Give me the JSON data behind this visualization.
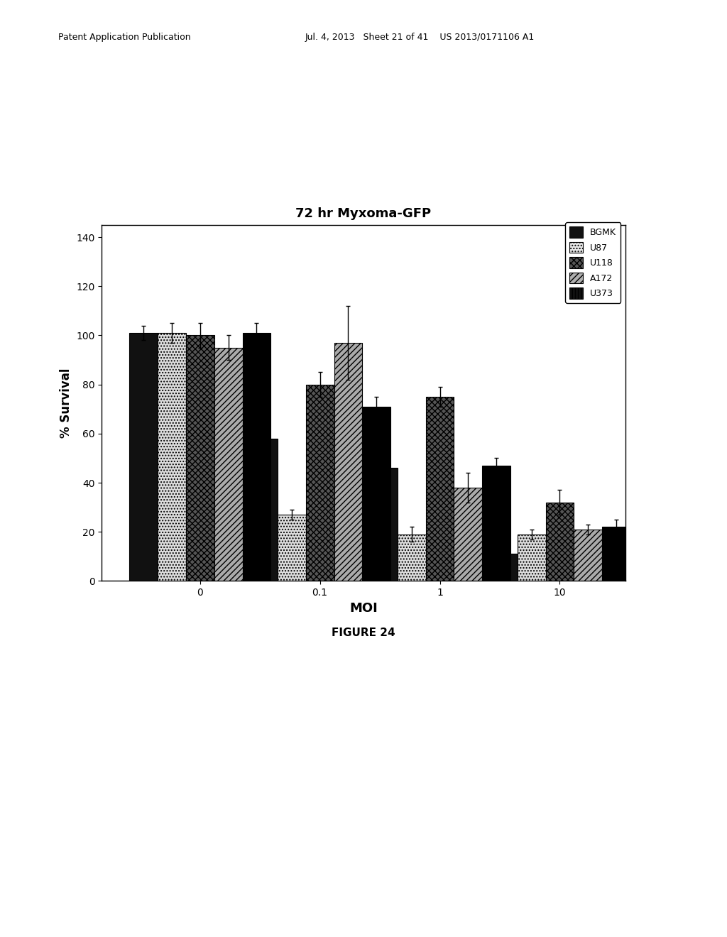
{
  "title": "72 hr Myxoma-GFP",
  "xlabel": "MOI",
  "ylabel": "% Survival",
  "ylim": [
    0,
    145
  ],
  "yticks": [
    0,
    20,
    40,
    60,
    80,
    100,
    120,
    140
  ],
  "moi_labels": [
    "0",
    "0.1",
    "1",
    "10"
  ],
  "series": [
    {
      "name": "BGMK",
      "hatch": "",
      "facecolor": "#111111",
      "edgecolor": "#000000",
      "values": [
        101,
        58,
        46,
        11
      ],
      "errors": [
        3,
        2,
        4,
        2
      ]
    },
    {
      "name": "U87",
      "hatch": "....",
      "facecolor": "#dddddd",
      "edgecolor": "#000000",
      "values": [
        101,
        27,
        19,
        19
      ],
      "errors": [
        4,
        2,
        3,
        2
      ]
    },
    {
      "name": "U118",
      "hatch": "xxxx",
      "facecolor": "#555555",
      "edgecolor": "#000000",
      "values": [
        100,
        80,
        75,
        32
      ],
      "errors": [
        5,
        5,
        4,
        5
      ]
    },
    {
      "name": "A172",
      "hatch": "////",
      "facecolor": "#aaaaaa",
      "edgecolor": "#000000",
      "values": [
        95,
        97,
        38,
        21
      ],
      "errors": [
        5,
        15,
        6,
        2
      ]
    },
    {
      "name": "U373",
      "hatch": "||||",
      "facecolor": "#000000",
      "edgecolor": "#000000",
      "values": [
        101,
        71,
        47,
        22
      ],
      "errors": [
        4,
        4,
        3,
        3
      ]
    }
  ],
  "bar_width": 0.13,
  "legend_fontsize": 9,
  "axis_fontsize": 12,
  "tick_fontsize": 10,
  "title_fontsize": 13,
  "background_color": "#ffffff",
  "header_left": "Patent Application Publication",
  "header_right": "Jul. 4, 2013   Sheet 21 of 41    US 2013/0171106 A1",
  "footer_text": "FIGURE 24"
}
